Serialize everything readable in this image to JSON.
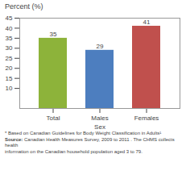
{
  "chart_data": {
    "type": "bar",
    "title": "Percent (%)",
    "xlabel": "Sex",
    "categories": [
      "Total",
      "Males",
      "Females"
    ],
    "values": [
      35,
      29,
      41
    ],
    "colors": [
      "#8db33a",
      "#4d7ebf",
      "#c0504d"
    ],
    "ylim": [
      0,
      45
    ],
    "yticks": [
      10,
      15,
      20,
      25,
      30,
      35,
      40,
      45
    ],
    "grid": false,
    "data_labels": true,
    "annotations": [
      "* Based on Canadian Guidelines for Body Weight Classification in Adults¹",
      "Source: Canadian Health Measures Survey, 2009 to 2011 . The CHMS collects health",
      "information on the Canadian household population aged 3 to 79."
    ]
  }
}
